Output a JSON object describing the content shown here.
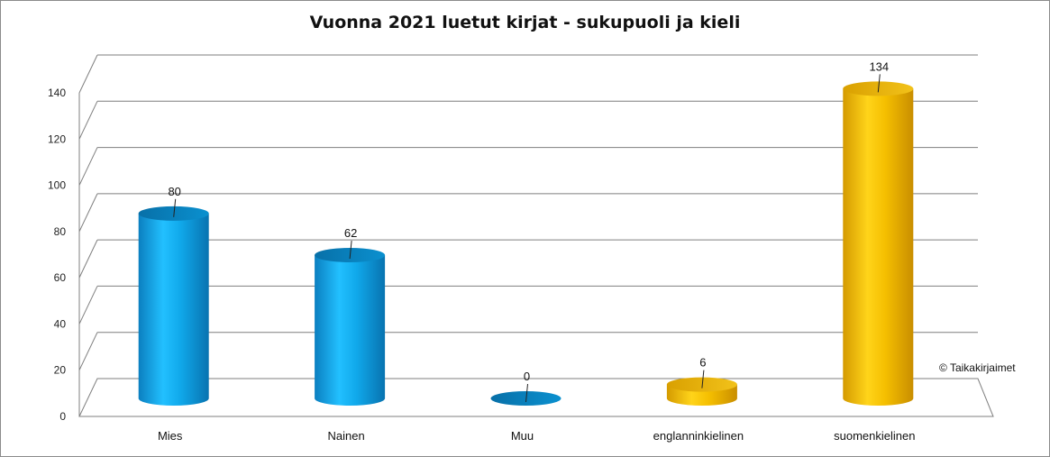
{
  "chart_data": {
    "type": "bar",
    "title": "Vuonna 2021 luetut kirjat - sukupuoli ja kieli",
    "xlabel": "",
    "ylabel": "",
    "categories": [
      "Mies",
      "Nainen",
      "Muu",
      "englanninkielinen",
      "suomenkielinen"
    ],
    "values": [
      80,
      62,
      0,
      6,
      134
    ],
    "data_labels": [
      "80",
      "62",
      "0",
      "6",
      "134"
    ],
    "ylim": [
      0,
      140
    ],
    "yticks": [
      "0",
      "20",
      "40",
      "60",
      "80",
      "100",
      "120",
      "140"
    ],
    "grid": true,
    "style": "3d-cylinder",
    "colors": [
      "#1ba8e6",
      "#1ba8e6",
      "#1ba8e6",
      "#e8b000",
      "#e8b000"
    ]
  },
  "watermark": "© Taikakirjaimet"
}
